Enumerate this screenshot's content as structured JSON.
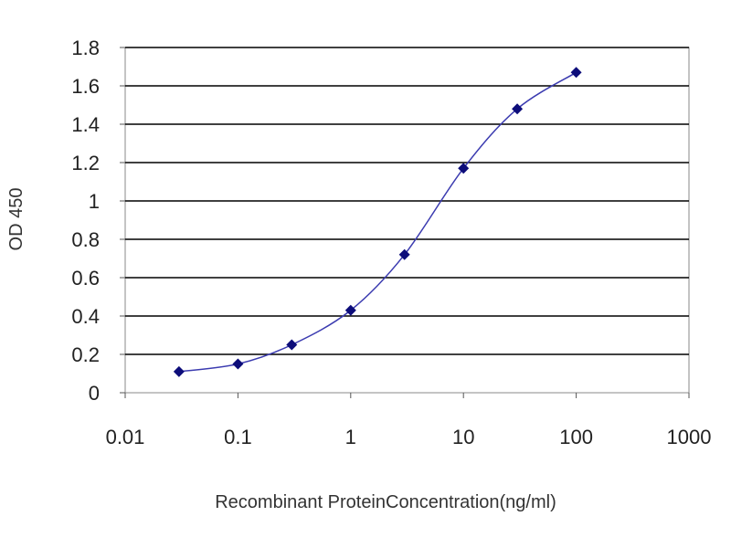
{
  "chart_data": {
    "type": "line",
    "xscale": "log",
    "xlabel": "Recombinant ProteinConcentration(ng/ml)",
    "ylabel": "OD 450",
    "xlim": [
      0.01,
      1000
    ],
    "ylim": [
      0,
      1.8
    ],
    "x_tick_labels": [
      "0.01",
      "0.1",
      "1",
      "10",
      "100",
      "1000"
    ],
    "x_tick_values": [
      0.01,
      0.1,
      1,
      10,
      100,
      1000
    ],
    "y_tick_labels": [
      "0",
      "0.2",
      "0.4",
      "0.6",
      "0.8",
      "1",
      "1.2",
      "1.4",
      "1.6",
      "1.8"
    ],
    "y_tick_values": [
      0,
      0.2,
      0.4,
      0.6,
      0.8,
      1.0,
      1.2,
      1.4,
      1.6,
      1.8
    ],
    "grid": "horizontal",
    "series": [
      {
        "x": [
          0.03,
          0.1,
          0.3,
          1,
          3,
          10,
          30,
          100
        ],
        "y": [
          0.11,
          0.15,
          0.25,
          0.43,
          0.72,
          1.17,
          1.48,
          1.67
        ]
      }
    ],
    "colors": {
      "line": "#3b3bb0",
      "marker": "#0d0d7a",
      "grid": "#000000",
      "frame": "#888888"
    }
  }
}
